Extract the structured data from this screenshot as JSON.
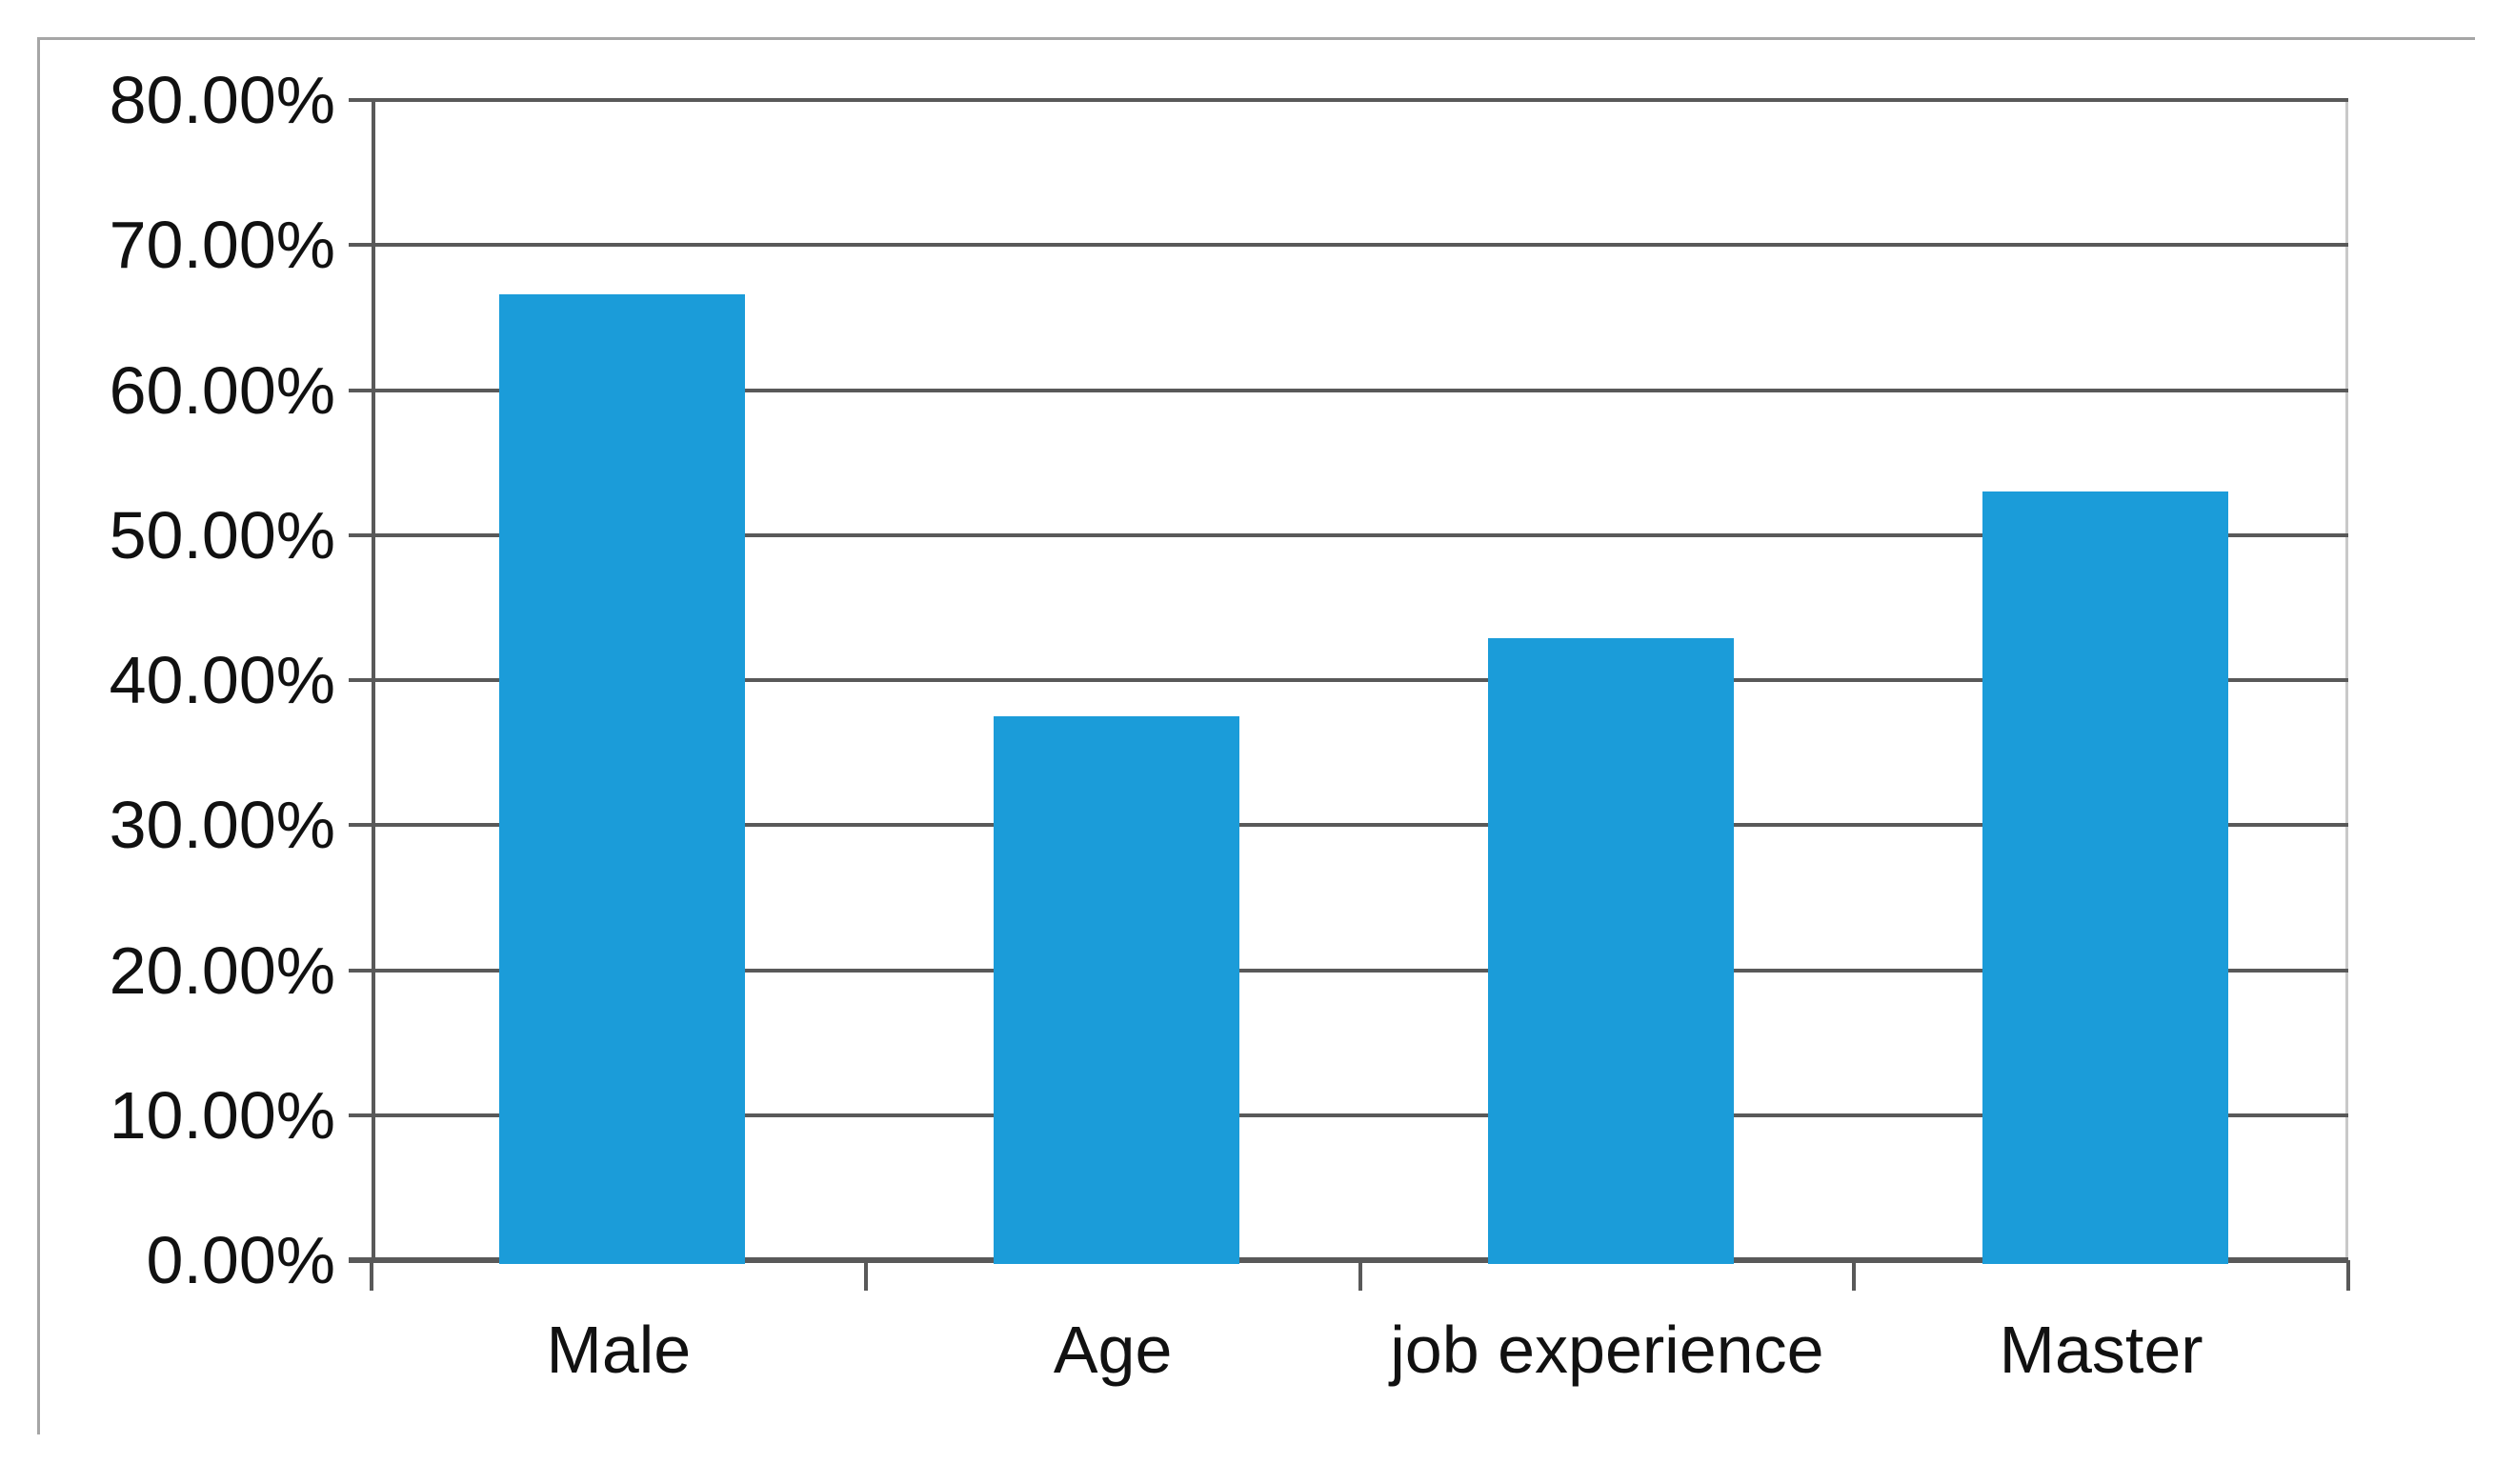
{
  "chart": {
    "background_color": "#ffffff",
    "frame_color": "#a6a6a6",
    "grid_color": "#595959",
    "axis_color": "#595959",
    "plot_right_edge_color": "#c9c9c9",
    "bar_color": "#1b9cd9",
    "text_color": "#111111"
  },
  "chart_data": {
    "type": "bar",
    "title": "",
    "xlabel": "",
    "ylabel": "",
    "categories": [
      "Male",
      "Age",
      "job experience",
      "Master"
    ],
    "values": [
      66.6,
      37.5,
      42.9,
      53.0
    ],
    "ylim": [
      0,
      80
    ],
    "y_tick_values": [
      0,
      10,
      20,
      30,
      40,
      50,
      60,
      70,
      80
    ],
    "y_tick_labels": [
      "0.00%",
      "10.00%",
      "20.00%",
      "30.00%",
      "40.00%",
      "50.00%",
      "60.00%",
      "70.00%",
      "80.00%"
    ],
    "grid": true,
    "legend": false,
    "series_color": "#1b9cd9"
  }
}
